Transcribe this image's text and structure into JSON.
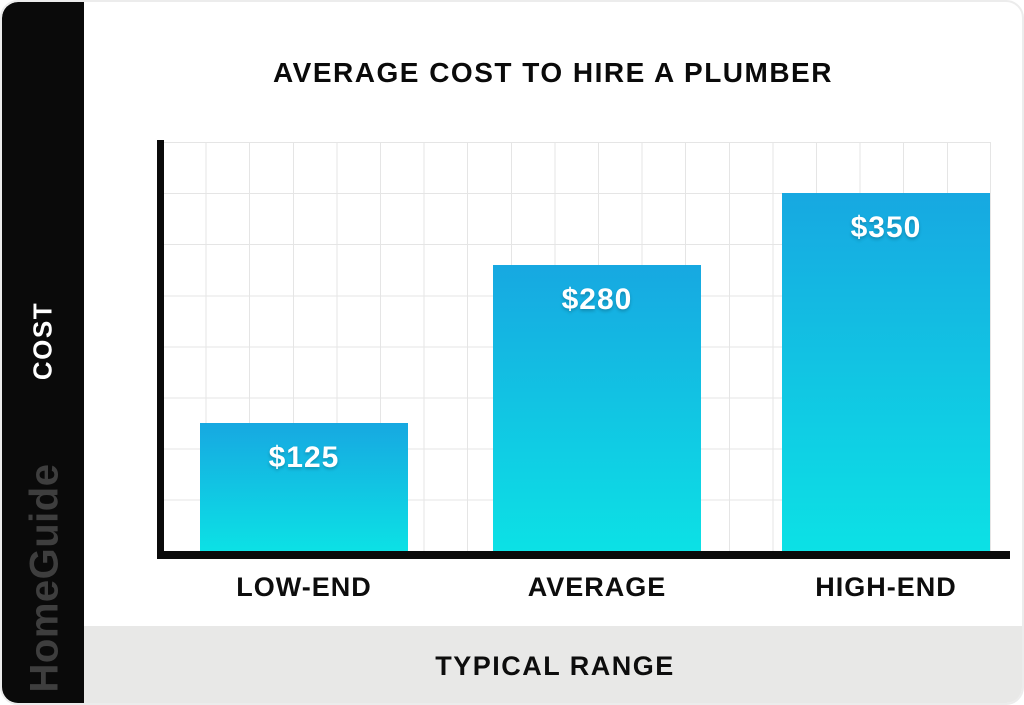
{
  "page": {
    "brand": "HomeGuide"
  },
  "chart_data": {
    "type": "bar",
    "title": "AVERAGE COST TO HIRE A PLUMBER",
    "categories": [
      "LOW-END",
      "AVERAGE",
      "HIGH-END"
    ],
    "values": [
      125,
      280,
      350
    ],
    "value_labels": [
      "$125",
      "$280",
      "$350"
    ],
    "xlabel": "TYPICAL RANGE",
    "ylabel": "COST",
    "ylim": [
      0,
      400
    ],
    "grid": true,
    "legend": false,
    "colors": {
      "bar_gradient_top": "#17a8e1",
      "bar_gradient_bottom": "#0ce1e5",
      "grid_line": "#e5e5e5",
      "axis": "#0a0a0a",
      "sidebar_bg": "#0a0a0a",
      "band_bg": "#e8e8e7",
      "brand_text": "#3e3e3e",
      "value_label_text": "#ffffff",
      "title_text": "#0a0a0a"
    }
  }
}
